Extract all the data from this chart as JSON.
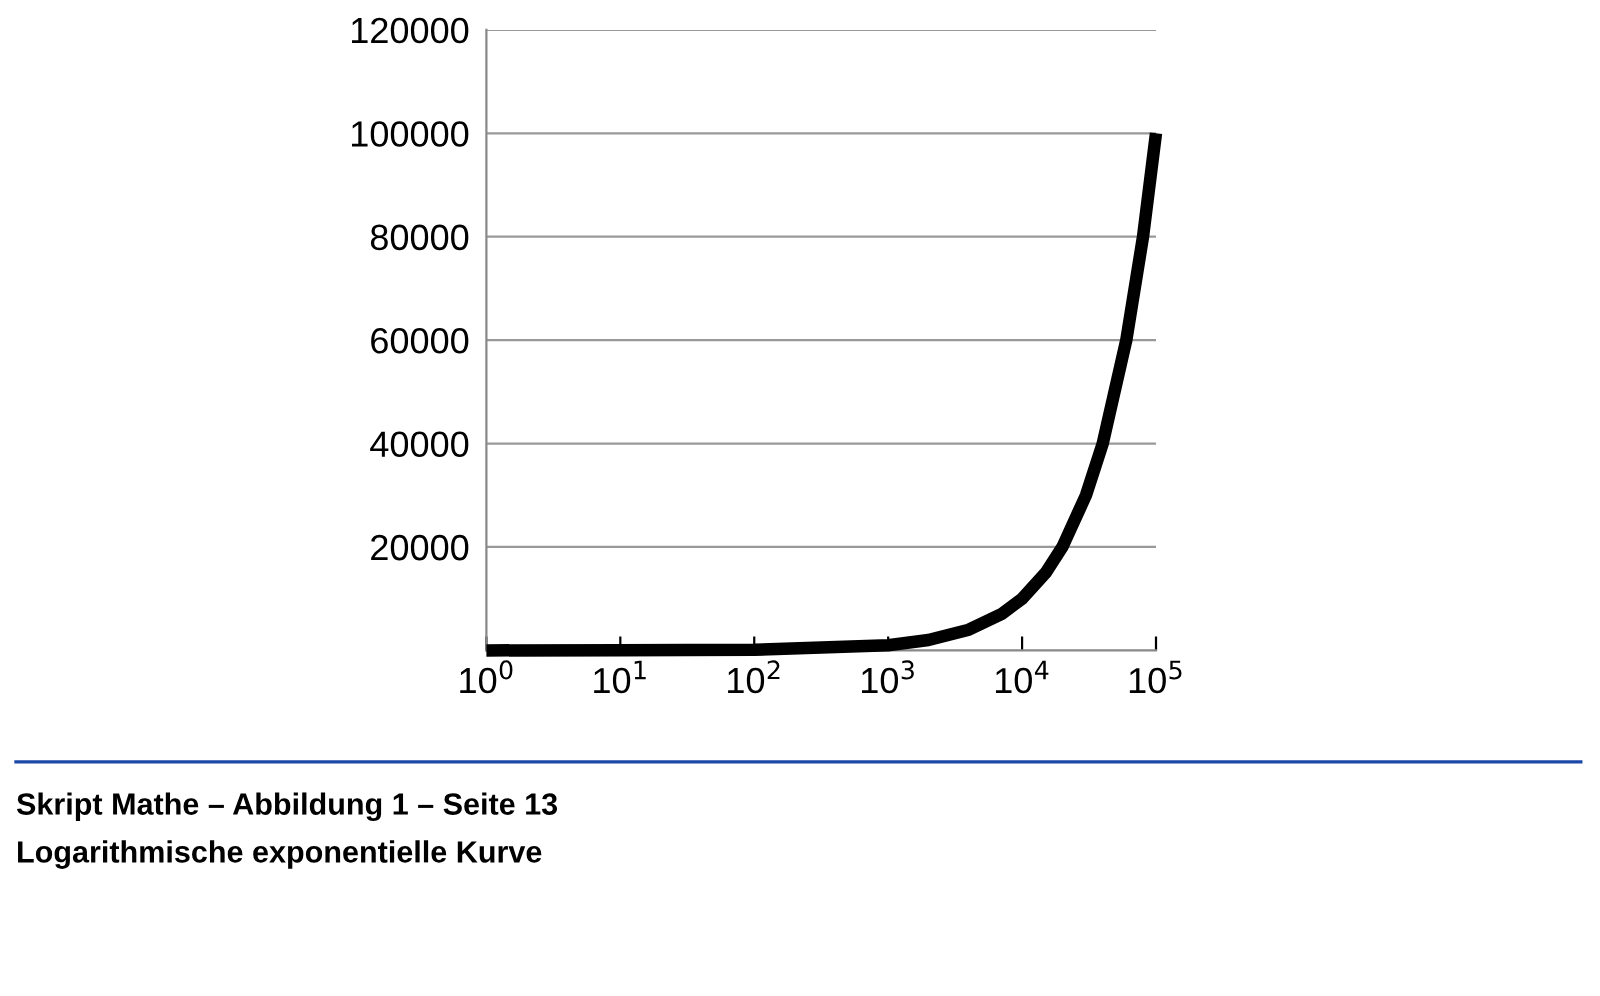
{
  "chart_data": {
    "type": "line",
    "x": [
      1,
      10,
      100,
      1000,
      2000,
      4000,
      7000,
      10000,
      15000,
      20000,
      30000,
      40000,
      60000,
      80000,
      100000
    ],
    "series": [
      {
        "color": "#000000",
        "values": [
          1,
          10,
          100,
          1000,
          2000,
          4000,
          7000,
          10000,
          15000,
          20000,
          30000,
          40000,
          60000,
          80000,
          100000
        ]
      }
    ],
    "log": "x",
    "xlim": [
      1,
      100000
    ],
    "xticks": [
      {
        "value": 1,
        "label": "10$^{0}$"
      },
      {
        "value": 10,
        "label": "10$^{1}$"
      },
      {
        "value": 100,
        "label": "10$^{2}$"
      },
      {
        "value": 1000,
        "label": "10$^{3}$"
      },
      {
        "value": 10000,
        "label": "10$^{4}$"
      },
      {
        "value": 100000,
        "label": "10$^{5}$"
      }
    ],
    "ylim": [
      0,
      120000
    ],
    "yticks": [
      20000,
      40000,
      60000,
      80000,
      100000,
      120000
    ],
    "grid": "y",
    "marker": "none",
    "line_style": "solid",
    "annotations": [
      "Skript Mathe – Abbildung 1 – Seite 13",
      "Logarithmische exponentielle Kurve"
    ]
  }
}
